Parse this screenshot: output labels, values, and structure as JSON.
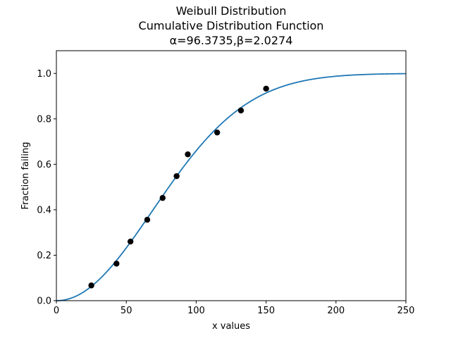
{
  "chart_data": {
    "type": "scatter",
    "title_lines": [
      "Weibull Distribution",
      "Cumulative Distribution Function",
      "α=96.3735,β=2.0274"
    ],
    "xlabel": "x values",
    "ylabel": "Fraction failing",
    "xlim": [
      0,
      250
    ],
    "ylim": [
      0,
      1.1
    ],
    "x_ticks": [
      0,
      50,
      100,
      150,
      200,
      250
    ],
    "y_ticks": [
      0.0,
      0.2,
      0.4,
      0.6,
      0.8,
      1.0
    ],
    "x_tick_labels": [
      "0",
      "50",
      "100",
      "150",
      "200",
      "250"
    ],
    "y_tick_labels": [
      "0.0",
      "0.2",
      "0.4",
      "0.6",
      "0.8",
      "1.0"
    ],
    "grid": false,
    "series": [
      {
        "type": "line",
        "color": "#1f77b4",
        "alpha": 96.3735,
        "beta": 2.0274
      },
      {
        "type": "scatter",
        "color": "#000000",
        "x": [
          25,
          43,
          53,
          65,
          76,
          86,
          94,
          115,
          132,
          150
        ],
        "y": [
          0.067,
          0.163,
          0.26,
          0.356,
          0.452,
          0.548,
          0.644,
          0.74,
          0.837,
          0.933
        ]
      }
    ]
  }
}
